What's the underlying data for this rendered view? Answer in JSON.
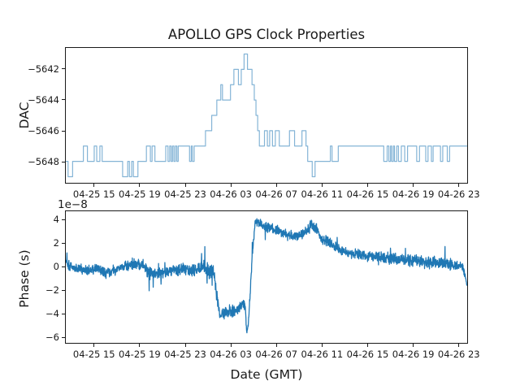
{
  "figure": {
    "title": "APOLLO GPS Clock Properties",
    "background_color": "#ffffff",
    "line_color": "#1f77b4"
  },
  "chart_data": [
    {
      "name": "dac",
      "type": "line",
      "style": "step-post",
      "title": "APOLLO GPS Clock Properties",
      "ylabel": "DAC",
      "xlabel": "",
      "legend": "none",
      "grid": false,
      "line_color": "#1f77b4",
      "line_opacity": 0.55,
      "x_unit_hours_from": "04-25 12:30 GMT",
      "xlim": [
        0,
        35.35
      ],
      "ylim": [
        -5649.4,
        -5640.6
      ],
      "yticks": [
        {
          "v": -5642,
          "label": "−5642"
        },
        {
          "v": -5644,
          "label": "−5644"
        },
        {
          "v": -5646,
          "label": "−5646"
        },
        {
          "v": -5648,
          "label": "−5648"
        }
      ],
      "xtick_hours": [
        2.55,
        6.55,
        10.55,
        14.55,
        18.55,
        22.55,
        26.55,
        30.55,
        34.55
      ],
      "xtick_labels": [
        "04-25 15",
        "04-25 19",
        "04-25 23",
        "04-26 03",
        "04-26 07",
        "04-26 11",
        "04-26 15",
        "04-26 19",
        "04-26 23"
      ],
      "steps": [
        [
          0,
          -5648
        ],
        [
          0.2,
          -5649
        ],
        [
          0.6,
          -5648
        ],
        [
          1.55,
          -5647
        ],
        [
          1.9,
          -5648
        ],
        [
          2.5,
          -5647
        ],
        [
          2.72,
          -5648
        ],
        [
          3.0,
          -5647
        ],
        [
          3.2,
          -5648
        ],
        [
          5.0,
          -5649
        ],
        [
          5.45,
          -5648
        ],
        [
          5.6,
          -5649
        ],
        [
          5.8,
          -5648
        ],
        [
          5.95,
          -5649
        ],
        [
          6.35,
          -5648
        ],
        [
          7.1,
          -5647
        ],
        [
          7.45,
          -5648
        ],
        [
          7.6,
          -5647
        ],
        [
          7.85,
          -5648
        ],
        [
          8.8,
          -5647
        ],
        [
          9.0,
          -5648
        ],
        [
          9.15,
          -5647
        ],
        [
          9.28,
          -5648
        ],
        [
          9.4,
          -5647
        ],
        [
          9.52,
          -5648
        ],
        [
          9.65,
          -5647
        ],
        [
          9.78,
          -5648
        ],
        [
          9.9,
          -5647
        ],
        [
          10.9,
          -5648
        ],
        [
          11.05,
          -5647
        ],
        [
          11.15,
          -5648
        ],
        [
          11.3,
          -5647
        ],
        [
          12.3,
          -5646
        ],
        [
          12.85,
          -5645
        ],
        [
          13.3,
          -5644
        ],
        [
          13.65,
          -5643
        ],
        [
          13.8,
          -5644
        ],
        [
          14.5,
          -5643
        ],
        [
          14.8,
          -5642
        ],
        [
          15.2,
          -5643
        ],
        [
          15.45,
          -5642
        ],
        [
          15.7,
          -5641
        ],
        [
          16.0,
          -5642
        ],
        [
          16.4,
          -5643
        ],
        [
          16.6,
          -5644
        ],
        [
          16.75,
          -5645
        ],
        [
          16.9,
          -5646
        ],
        [
          17.05,
          -5647
        ],
        [
          17.5,
          -5646
        ],
        [
          17.75,
          -5647
        ],
        [
          17.95,
          -5646
        ],
        [
          18.2,
          -5647
        ],
        [
          18.45,
          -5646
        ],
        [
          18.8,
          -5647
        ],
        [
          19.7,
          -5646
        ],
        [
          20.15,
          -5647
        ],
        [
          20.8,
          -5646
        ],
        [
          21.15,
          -5647
        ],
        [
          21.3,
          -5648
        ],
        [
          21.7,
          -5649
        ],
        [
          21.95,
          -5648
        ],
        [
          23.3,
          -5647
        ],
        [
          23.45,
          -5648
        ],
        [
          24.0,
          -5647
        ],
        [
          28.0,
          -5648
        ],
        [
          28.3,
          -5647
        ],
        [
          28.45,
          -5648
        ],
        [
          28.6,
          -5647
        ],
        [
          28.7,
          -5648
        ],
        [
          28.85,
          -5647
        ],
        [
          28.95,
          -5648
        ],
        [
          29.15,
          -5647
        ],
        [
          29.3,
          -5648
        ],
        [
          29.55,
          -5647
        ],
        [
          29.85,
          -5648
        ],
        [
          30.1,
          -5647
        ],
        [
          30.9,
          -5648
        ],
        [
          31.15,
          -5647
        ],
        [
          31.7,
          -5648
        ],
        [
          31.9,
          -5647
        ],
        [
          32.2,
          -5648
        ],
        [
          32.35,
          -5647
        ],
        [
          33.0,
          -5648
        ],
        [
          33.2,
          -5647
        ],
        [
          33.6,
          -5648
        ],
        [
          33.8,
          -5647
        ]
      ]
    },
    {
      "name": "phase",
      "type": "line",
      "style": "noisy-line",
      "ylabel": "Phase (s)",
      "xlabel": "Date (GMT)",
      "offset_text": "1e−8",
      "legend": "none",
      "grid": false,
      "line_color": "#1f77b4",
      "line_opacity": 1.0,
      "scale_factor": 1e-08,
      "xlim": [
        0,
        35.35
      ],
      "ylim": [
        -6.52,
        4.77
      ],
      "yticks": [
        {
          "v": 4,
          "label": "4"
        },
        {
          "v": 2,
          "label": "2"
        },
        {
          "v": 0,
          "label": "0"
        },
        {
          "v": -2,
          "label": "−2"
        },
        {
          "v": -4,
          "label": "−4"
        },
        {
          "v": -6,
          "label": "−6"
        }
      ],
      "xtick_hours": [
        2.55,
        6.55,
        10.55,
        14.55,
        18.55,
        22.55,
        26.55,
        30.55,
        34.55
      ],
      "xtick_labels": [
        "04-25 15",
        "04-25 19",
        "04-25 23",
        "04-26 03",
        "04-26 07",
        "04-26 11",
        "04-26 15",
        "04-26 19",
        "04-26 23"
      ],
      "n_points": 2100,
      "noise_seed": 1337,
      "trend": [
        [
          0.0,
          0.55,
          0.2
        ],
        [
          0.3,
          0.1,
          0.3
        ],
        [
          1.0,
          -0.15,
          0.3
        ],
        [
          2.0,
          -0.3,
          0.3
        ],
        [
          2.8,
          -0.2,
          0.3
        ],
        [
          3.6,
          -0.55,
          0.3
        ],
        [
          4.4,
          -0.25,
          0.3
        ],
        [
          5.2,
          0.1,
          0.3
        ],
        [
          6.2,
          0.25,
          0.3
        ],
        [
          6.9,
          0.05,
          0.35
        ],
        [
          7.4,
          -0.4,
          0.45
        ],
        [
          8.1,
          -0.5,
          0.35
        ],
        [
          9.0,
          -0.4,
          0.35
        ],
        [
          9.8,
          -0.2,
          0.35
        ],
        [
          10.6,
          -0.15,
          0.35
        ],
        [
          11.4,
          -0.25,
          0.45
        ],
        [
          12.0,
          -0.05,
          0.5
        ],
        [
          12.6,
          -0.3,
          0.5
        ],
        [
          13.05,
          -0.5,
          0.4
        ],
        [
          13.3,
          -2.6,
          0.4
        ],
        [
          13.6,
          -4.0,
          0.35
        ],
        [
          14.0,
          -3.9,
          0.4
        ],
        [
          14.7,
          -3.8,
          0.35
        ],
        [
          15.3,
          -3.5,
          0.3
        ],
        [
          15.6,
          -3.0,
          0.3
        ],
        [
          15.8,
          -3.5,
          0.25
        ],
        [
          15.95,
          -5.75,
          0.2
        ],
        [
          16.1,
          -4.6,
          0.2
        ],
        [
          16.45,
          1.5,
          0.3
        ],
        [
          16.7,
          4.0,
          0.25
        ],
        [
          17.1,
          3.7,
          0.3
        ],
        [
          17.8,
          3.4,
          0.3
        ],
        [
          18.5,
          3.2,
          0.3
        ],
        [
          19.3,
          2.8,
          0.3
        ],
        [
          20.1,
          2.6,
          0.3
        ],
        [
          20.9,
          2.8,
          0.3
        ],
        [
          21.6,
          3.6,
          0.35
        ],
        [
          22.0,
          3.3,
          0.35
        ],
        [
          22.6,
          2.4,
          0.3
        ],
        [
          23.4,
          2.0,
          0.3
        ],
        [
          24.1,
          1.5,
          0.3
        ],
        [
          25.0,
          1.2,
          0.3
        ],
        [
          26.0,
          1.0,
          0.32
        ],
        [
          27.0,
          0.9,
          0.32
        ],
        [
          28.5,
          0.75,
          0.35
        ],
        [
          30.0,
          0.6,
          0.35
        ],
        [
          31.5,
          0.45,
          0.35
        ],
        [
          33.0,
          0.35,
          0.35
        ],
        [
          34.3,
          0.2,
          0.3
        ],
        [
          35.0,
          0.0,
          0.3
        ],
        [
          35.2,
          -0.9,
          0.2
        ],
        [
          35.35,
          -1.7,
          0.1
        ]
      ],
      "spikes": [
        [
          0.1,
          1.2
        ],
        [
          7.35,
          -2.05
        ],
        [
          7.7,
          -1.75
        ],
        [
          11.95,
          1.15
        ],
        [
          12.45,
          -1.4
        ],
        [
          28.6,
          1.6
        ],
        [
          33.4,
          1.75
        ]
      ]
    }
  ]
}
